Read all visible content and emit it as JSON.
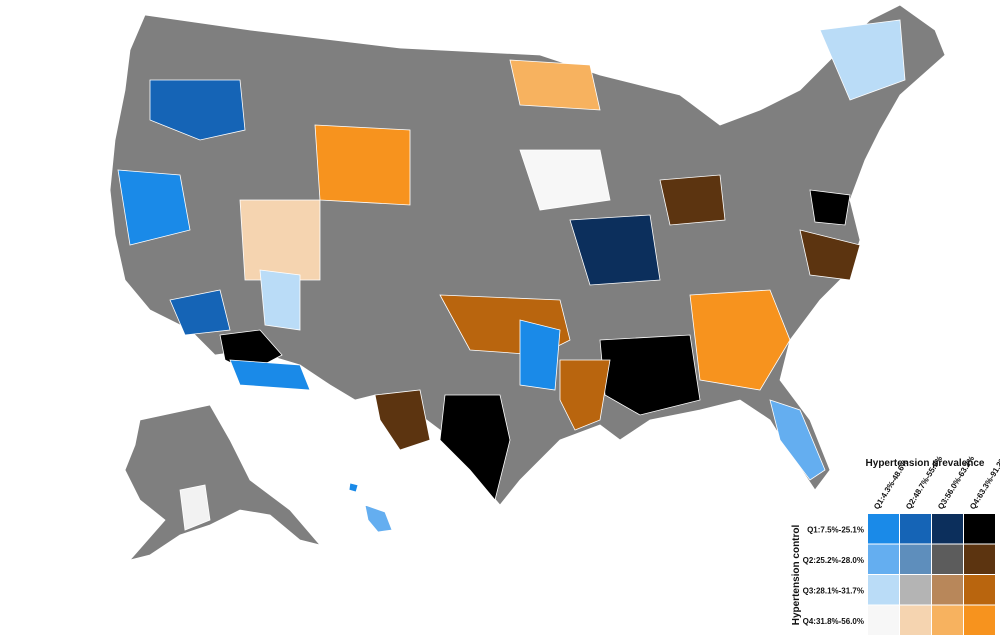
{
  "legend": {
    "title": "Hypertension prevalence",
    "y_title": "Hypertension control",
    "columns": [
      "Q1:4.3%-48.6%",
      "Q2:48.7%-55.9%",
      "Q3:56.0%-63.2%",
      "Q4:63.3%-91.2%"
    ],
    "rows": [
      "Q1:7.5%-25.1%",
      "Q2:25.2%-28.0%",
      "Q3:28.1%-31.7%",
      "Q4:31.8%-56.0%"
    ],
    "colors": [
      [
        "#1a8ae8",
        "#1564b6",
        "#0c2f5c",
        "#000000"
      ],
      [
        "#64aef0",
        "#5e8ebc",
        "#5c5c5c",
        "#5c3410"
      ],
      [
        "#badcf7",
        "#b4b4b4",
        "#b8875a",
        "#b9650e"
      ],
      [
        "#f7f7f7",
        "#f5d4b0",
        "#f7b25f",
        "#f7931e"
      ]
    ]
  }
}
